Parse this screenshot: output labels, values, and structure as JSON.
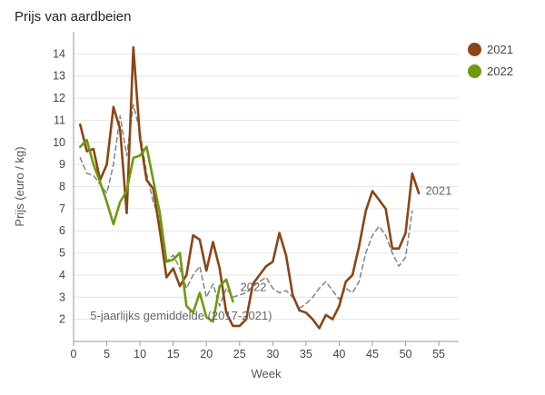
{
  "title": "Prijs van aardbeien",
  "colors": {
    "2021": "#8b4513",
    "2022": "#6b9a0d",
    "avg": "#888888",
    "grid": "#e4e4e4",
    "axis": "#999999"
  },
  "legend": [
    {
      "name": "2021",
      "color": "#8b4513"
    },
    {
      "name": "2022",
      "color": "#6b9a0d"
    }
  ],
  "chart_data": {
    "type": "line",
    "title": "Prijs van aardbeien",
    "xlabel": "Week",
    "ylabel": "Prijs (euro / kg)",
    "xlim": [
      0,
      58
    ],
    "ylim": [
      1,
      15
    ],
    "xticks": [
      0,
      5,
      10,
      15,
      20,
      25,
      30,
      35,
      40,
      45,
      50,
      55
    ],
    "yticks": [
      2,
      3,
      4,
      5,
      6,
      7,
      8,
      9,
      10,
      11,
      12,
      13,
      14
    ],
    "grid": "horizontal",
    "legend_position": "top-right",
    "series": [
      {
        "name": "2021",
        "color": "#8b4513",
        "style": "solid",
        "x": [
          1,
          2,
          3,
          4,
          5,
          6,
          7,
          8,
          9,
          10,
          11,
          12,
          13,
          14,
          15,
          16,
          17,
          18,
          19,
          20,
          21,
          22,
          23,
          24,
          25,
          26,
          27,
          28,
          29,
          30,
          31,
          32,
          33,
          34,
          35,
          36,
          37,
          38,
          39,
          40,
          41,
          42,
          43,
          44,
          45,
          46,
          47,
          48,
          49,
          50,
          51,
          52
        ],
        "y": [
          10.8,
          9.6,
          9.7,
          8.3,
          9.0,
          11.6,
          10.6,
          6.8,
          14.3,
          10.2,
          8.3,
          7.9,
          6.0,
          3.9,
          4.3,
          3.5,
          4.0,
          5.8,
          5.6,
          4.2,
          5.5,
          4.3,
          2.3,
          1.7,
          1.7,
          2.0,
          3.6,
          4.0,
          4.4,
          4.6,
          5.9,
          4.9,
          3.1,
          2.4,
          2.3,
          2.0,
          1.6,
          2.2,
          2.0,
          2.6,
          3.7,
          4.0,
          5.3,
          6.9,
          7.8,
          7.4,
          7.0,
          5.2,
          5.2,
          5.9,
          8.6,
          7.7
        ]
      },
      {
        "name": "2022",
        "color": "#6b9a0d",
        "style": "solid",
        "x": [
          1,
          2,
          3,
          4,
          5,
          6,
          7,
          8,
          9,
          10,
          11,
          12,
          13,
          14,
          15,
          16,
          17,
          18,
          19,
          20,
          21,
          22,
          23,
          24
        ],
        "y": [
          9.8,
          10.1,
          9.0,
          8.2,
          7.3,
          6.3,
          7.3,
          7.8,
          9.3,
          9.4,
          9.8,
          8.3,
          6.8,
          4.6,
          4.7,
          5.0,
          2.6,
          2.3,
          3.2,
          2.1,
          1.9,
          3.5,
          3.8,
          2.8
        ]
      },
      {
        "name": "5-jaarlijks gemiddelde (2017-2021)",
        "color": "#888888",
        "style": "dashed",
        "x": [
          1,
          2,
          3,
          4,
          5,
          6,
          7,
          8,
          9,
          10,
          11,
          12,
          13,
          14,
          15,
          16,
          17,
          18,
          19,
          20,
          21,
          22,
          23,
          24,
          25,
          26,
          27,
          28,
          29,
          30,
          31,
          32,
          33,
          34,
          35,
          36,
          37,
          38,
          39,
          40,
          41,
          42,
          43,
          44,
          45,
          46,
          47,
          48,
          49,
          50,
          51
        ],
        "y": [
          9.3,
          8.6,
          8.5,
          8.1,
          7.7,
          9.0,
          11.2,
          9.4,
          11.7,
          10.5,
          8.6,
          7.3,
          6.5,
          4.6,
          4.9,
          4.3,
          3.4,
          4.0,
          4.4,
          3.0,
          3.6,
          2.6,
          3.4,
          3.0,
          3.1,
          3.2,
          3.5,
          3.7,
          3.9,
          3.4,
          3.2,
          3.3,
          3.0,
          2.5,
          2.7,
          3.0,
          3.4,
          3.7,
          3.3,
          2.9,
          3.4,
          3.2,
          3.7,
          5.0,
          5.8,
          6.2,
          5.8,
          5.0,
          4.4,
          4.8,
          6.9
        ]
      }
    ],
    "annotations": [
      {
        "text": "2021",
        "x": 53,
        "y": 7.8
      },
      {
        "text": "2022",
        "x": 25.1,
        "y": 3.45
      },
      {
        "text": "5-jaarlijks gemiddelde (2017-2021)",
        "x": 2.5,
        "y": 2.15
      }
    ]
  }
}
